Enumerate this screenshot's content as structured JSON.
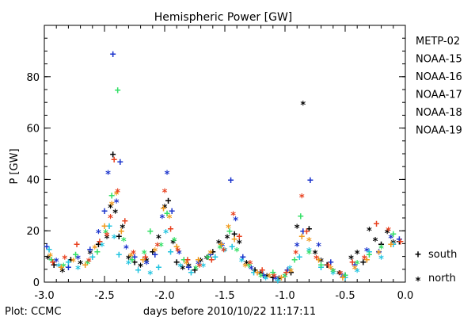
{
  "chart_data": {
    "type": "scatter",
    "title": "Hemispheric Power [GW]",
    "xlabel": "days before 2010/10/22 11:17:11",
    "ylabel": "P [GW]",
    "footer": "Plot: CCMC",
    "xlim": [
      -3.0,
      0.0
    ],
    "ylim": [
      0,
      100
    ],
    "x_ticks": [
      "-3.0",
      "-2.5",
      "-2.0",
      "-1.5",
      "-1.0",
      "-0.5",
      "0.0"
    ],
    "x_tick_values": [
      -3.0,
      -2.5,
      -2.0,
      -1.5,
      -1.0,
      -0.5,
      0.0
    ],
    "y_ticks": [
      "0",
      "20",
      "40",
      "60",
      "80"
    ],
    "y_tick_values": [
      0,
      20,
      40,
      60,
      80
    ],
    "hemisphere_legend": [
      {
        "symbol": "+",
        "label": "south"
      },
      {
        "symbol": "*",
        "label": "north"
      }
    ],
    "series": [
      {
        "name": "METP-02",
        "color": "#000000",
        "points": [
          [
            -2.97,
            10,
            "*"
          ],
          [
            -2.92,
            7,
            "+"
          ],
          [
            -2.85,
            5,
            "*"
          ],
          [
            -2.78,
            9,
            "+"
          ],
          [
            -2.7,
            8,
            "*"
          ],
          [
            -2.62,
            12,
            "*"
          ],
          [
            -2.55,
            15,
            "+"
          ],
          [
            -2.48,
            18,
            "*"
          ],
          [
            -2.45,
            30,
            "*"
          ],
          [
            -2.43,
            50,
            "+"
          ],
          [
            -2.41,
            28,
            "*"
          ],
          [
            -2.38,
            18,
            "+"
          ],
          [
            -2.35,
            22,
            "*"
          ],
          [
            -2.3,
            10,
            "*"
          ],
          [
            -2.25,
            8,
            "+"
          ],
          [
            -2.2,
            7,
            "*"
          ],
          [
            -2.15,
            9,
            "*"
          ],
          [
            -2.1,
            12,
            "+"
          ],
          [
            -2.05,
            18,
            "*"
          ],
          [
            -2.0,
            30,
            "*"
          ],
          [
            -1.97,
            32,
            "+"
          ],
          [
            -1.93,
            16,
            "*"
          ],
          [
            -1.9,
            8,
            "+"
          ],
          [
            -1.85,
            6,
            "*"
          ],
          [
            -1.8,
            7,
            "*"
          ],
          [
            -1.75,
            5,
            "+"
          ],
          [
            -1.7,
            9,
            "*"
          ],
          [
            -1.65,
            10,
            "*"
          ],
          [
            -1.6,
            12,
            "+"
          ],
          [
            -1.55,
            16,
            "*"
          ],
          [
            -1.48,
            18,
            "*"
          ],
          [
            -1.42,
            19,
            "+"
          ],
          [
            -1.38,
            16,
            "*"
          ],
          [
            -1.32,
            8,
            "*"
          ],
          [
            -1.25,
            5,
            "+"
          ],
          [
            -1.2,
            4,
            "*"
          ],
          [
            -1.15,
            3,
            "*"
          ],
          [
            -1.1,
            2,
            "+"
          ],
          [
            -1.05,
            2,
            "*"
          ],
          [
            -1.0,
            3,
            "*"
          ],
          [
            -0.95,
            4,
            "+"
          ],
          [
            -0.9,
            22,
            "*"
          ],
          [
            -0.85,
            70,
            "*"
          ],
          [
            -0.8,
            21,
            "+"
          ],
          [
            -0.75,
            12,
            "*"
          ],
          [
            -0.7,
            9,
            "*"
          ],
          [
            -0.65,
            7,
            "+"
          ],
          [
            -0.6,
            5,
            "*"
          ],
          [
            -0.55,
            4,
            "*"
          ],
          [
            -0.5,
            3,
            "+"
          ],
          [
            -0.45,
            10,
            "*"
          ],
          [
            -0.4,
            12,
            "*"
          ],
          [
            -0.35,
            8,
            "+"
          ],
          [
            -0.3,
            21,
            "*"
          ],
          [
            -0.25,
            17,
            "*"
          ],
          [
            -0.2,
            15,
            "+"
          ],
          [
            -0.15,
            20,
            "*"
          ],
          [
            -0.1,
            16,
            "*"
          ],
          [
            -0.05,
            16,
            "+"
          ]
        ]
      },
      {
        "name": "NOAA-15",
        "color": "#1a33cc",
        "points": [
          [
            -2.98,
            14,
            "+"
          ],
          [
            -2.9,
            9,
            "*"
          ],
          [
            -2.8,
            6,
            "+"
          ],
          [
            -2.72,
            10,
            "*"
          ],
          [
            -2.62,
            13,
            "+"
          ],
          [
            -2.55,
            20,
            "*"
          ],
          [
            -2.5,
            28,
            "+"
          ],
          [
            -2.47,
            43,
            "*"
          ],
          [
            -2.43,
            89,
            "+"
          ],
          [
            -2.4,
            32,
            "*"
          ],
          [
            -2.37,
            47,
            "+"
          ],
          [
            -2.32,
            14,
            "*"
          ],
          [
            -2.25,
            10,
            "+"
          ],
          [
            -2.15,
            8,
            "*"
          ],
          [
            -2.08,
            11,
            "+"
          ],
          [
            -2.02,
            26,
            "*"
          ],
          [
            -1.98,
            43,
            "*"
          ],
          [
            -1.94,
            28,
            "+"
          ],
          [
            -1.88,
            12,
            "*"
          ],
          [
            -1.8,
            6,
            "+"
          ],
          [
            -1.72,
            8,
            "*"
          ],
          [
            -1.62,
            11,
            "+"
          ],
          [
            -1.52,
            15,
            "*"
          ],
          [
            -1.45,
            40,
            "+"
          ],
          [
            -1.41,
            25,
            "*"
          ],
          [
            -1.35,
            10,
            "+"
          ],
          [
            -1.28,
            6,
            "*"
          ],
          [
            -1.18,
            3,
            "+"
          ],
          [
            -1.08,
            2,
            "*"
          ],
          [
            -0.98,
            5,
            "+"
          ],
          [
            -0.9,
            15,
            "*"
          ],
          [
            -0.85,
            20,
            "+"
          ],
          [
            -0.79,
            40,
            "+"
          ],
          [
            -0.72,
            15,
            "*"
          ],
          [
            -0.62,
            8,
            "+"
          ],
          [
            -0.52,
            3,
            "*"
          ],
          [
            -0.42,
            7,
            "+"
          ],
          [
            -0.32,
            13,
            "*"
          ],
          [
            -0.22,
            12,
            "+"
          ],
          [
            -0.12,
            18,
            "*"
          ],
          [
            -0.05,
            17,
            "+"
          ]
        ]
      },
      {
        "name": "NOAA-16",
        "color": "#22c4e0",
        "points": [
          [
            -2.96,
            13,
            "+"
          ],
          [
            -2.88,
            7,
            "*"
          ],
          [
            -2.8,
            8,
            "+"
          ],
          [
            -2.72,
            6,
            "*"
          ],
          [
            -2.6,
            10,
            "+"
          ],
          [
            -2.52,
            15,
            "*"
          ],
          [
            -2.46,
            22,
            "+"
          ],
          [
            -2.42,
            18,
            "*"
          ],
          [
            -2.38,
            11,
            "+"
          ],
          [
            -2.3,
            8,
            "*"
          ],
          [
            -2.22,
            5,
            "+"
          ],
          [
            -2.12,
            4,
            "*"
          ],
          [
            -2.05,
            6,
            "+"
          ],
          [
            -1.99,
            20,
            "*"
          ],
          [
            -1.95,
            12,
            "+"
          ],
          [
            -1.87,
            7,
            "*"
          ],
          [
            -1.78,
            4,
            "+"
          ],
          [
            -1.68,
            7,
            "*"
          ],
          [
            -1.58,
            10,
            "+"
          ],
          [
            -1.5,
            13,
            "*"
          ],
          [
            -1.44,
            14,
            "+"
          ],
          [
            -1.36,
            9,
            "*"
          ],
          [
            -1.26,
            4,
            "+"
          ],
          [
            -1.16,
            2,
            "*"
          ],
          [
            -1.06,
            1,
            "+"
          ],
          [
            -0.96,
            6,
            "*"
          ],
          [
            -0.88,
            10,
            "+"
          ],
          [
            -0.8,
            13,
            "*"
          ],
          [
            -0.7,
            6,
            "+"
          ],
          [
            -0.6,
            4,
            "*"
          ],
          [
            -0.5,
            2,
            "+"
          ],
          [
            -0.4,
            5,
            "*"
          ],
          [
            -0.3,
            12,
            "+"
          ],
          [
            -0.2,
            10,
            "*"
          ],
          [
            -0.1,
            15,
            "+"
          ]
        ]
      },
      {
        "name": "NOAA-17",
        "color": "#33e066",
        "points": [
          [
            -2.94,
            9,
            "+"
          ],
          [
            -2.84,
            7,
            "*"
          ],
          [
            -2.74,
            11,
            "+"
          ],
          [
            -2.64,
            8,
            "*"
          ],
          [
            -2.56,
            12,
            "+"
          ],
          [
            -2.49,
            20,
            "*"
          ],
          [
            -2.44,
            34,
            "+"
          ],
          [
            -2.39,
            75,
            "+"
          ],
          [
            -2.34,
            17,
            "*"
          ],
          [
            -2.27,
            9,
            "+"
          ],
          [
            -2.17,
            12,
            "*"
          ],
          [
            -2.12,
            20,
            "+"
          ],
          [
            -2.03,
            15,
            "*"
          ],
          [
            -1.98,
            27,
            "+"
          ],
          [
            -1.92,
            17,
            "*"
          ],
          [
            -1.84,
            9,
            "+"
          ],
          [
            -1.74,
            6,
            "*"
          ],
          [
            -1.64,
            10,
            "+"
          ],
          [
            -1.54,
            14,
            "*"
          ],
          [
            -1.46,
            20,
            "+"
          ],
          [
            -1.4,
            13,
            "*"
          ],
          [
            -1.3,
            7,
            "+"
          ],
          [
            -1.2,
            3,
            "*"
          ],
          [
            -1.1,
            4,
            "+"
          ],
          [
            -1.0,
            3,
            "*"
          ],
          [
            -0.92,
            9,
            "+"
          ],
          [
            -0.87,
            26,
            "+"
          ],
          [
            -0.8,
            12,
            "*"
          ],
          [
            -0.7,
            7,
            "+"
          ],
          [
            -0.6,
            5,
            "*"
          ],
          [
            -0.5,
            3,
            "+"
          ],
          [
            -0.4,
            8,
            "*"
          ],
          [
            -0.3,
            11,
            "+"
          ],
          [
            -0.2,
            14,
            "*"
          ],
          [
            -0.1,
            19,
            "+"
          ]
        ]
      },
      {
        "name": "NOAA-18",
        "color": "#f09a1e",
        "points": [
          [
            -2.95,
            11,
            "*"
          ],
          [
            -2.86,
            6,
            "+"
          ],
          [
            -2.76,
            9,
            "*"
          ],
          [
            -2.66,
            7,
            "+"
          ],
          [
            -2.58,
            14,
            "*"
          ],
          [
            -2.5,
            22,
            "+"
          ],
          [
            -2.44,
            31,
            "*"
          ],
          [
            -2.4,
            35,
            "*"
          ],
          [
            -2.36,
            20,
            "+"
          ],
          [
            -2.28,
            11,
            "*"
          ],
          [
            -2.18,
            9,
            "+"
          ],
          [
            -2.08,
            13,
            "*"
          ],
          [
            -2.01,
            29,
            "+"
          ],
          [
            -1.96,
            26,
            "*"
          ],
          [
            -1.9,
            14,
            "+"
          ],
          [
            -1.82,
            8,
            "*"
          ],
          [
            -1.72,
            9,
            "+"
          ],
          [
            -1.62,
            12,
            "*"
          ],
          [
            -1.53,
            15,
            "+"
          ],
          [
            -1.47,
            22,
            "*"
          ],
          [
            -1.42,
            17,
            "+"
          ],
          [
            -1.33,
            7,
            "*"
          ],
          [
            -1.23,
            4,
            "+"
          ],
          [
            -1.13,
            3,
            "*"
          ],
          [
            -1.03,
            2,
            "+"
          ],
          [
            -0.95,
            5,
            "*"
          ],
          [
            -0.86,
            18,
            "+"
          ],
          [
            -0.8,
            17,
            "*"
          ],
          [
            -0.72,
            9,
            "+"
          ],
          [
            -0.62,
            6,
            "*"
          ],
          [
            -0.52,
            2,
            "+"
          ],
          [
            -0.42,
            6,
            "*"
          ],
          [
            -0.32,
            9,
            "+"
          ],
          [
            -0.22,
            12,
            "*"
          ],
          [
            -0.12,
            15,
            "+"
          ]
        ]
      },
      {
        "name": "NOAA-19",
        "color": "#e8401e",
        "points": [
          [
            -2.93,
            8,
            "+"
          ],
          [
            -2.83,
            10,
            "*"
          ],
          [
            -2.73,
            15,
            "+"
          ],
          [
            -2.63,
            9,
            "*"
          ],
          [
            -2.54,
            16,
            "+"
          ],
          [
            -2.48,
            19,
            "*"
          ],
          [
            -2.45,
            26,
            "*"
          ],
          [
            -2.42,
            48,
            "+"
          ],
          [
            -2.39,
            36,
            "*"
          ],
          [
            -2.33,
            24,
            "+"
          ],
          [
            -2.26,
            12,
            "*"
          ],
          [
            -2.16,
            10,
            "+"
          ],
          [
            -2.06,
            15,
            "*"
          ],
          [
            -2.0,
            36,
            "*"
          ],
          [
            -1.95,
            21,
            "+"
          ],
          [
            -1.89,
            13,
            "*"
          ],
          [
            -1.81,
            9,
            "+"
          ],
          [
            -1.71,
            7,
            "*"
          ],
          [
            -1.61,
            9,
            "+"
          ],
          [
            -1.51,
            13,
            "*"
          ],
          [
            -1.43,
            27,
            "*"
          ],
          [
            -1.38,
            18,
            "+"
          ],
          [
            -1.29,
            8,
            "*"
          ],
          [
            -1.19,
            5,
            "+"
          ],
          [
            -1.09,
            3,
            "*"
          ],
          [
            -0.99,
            4,
            "+"
          ],
          [
            -0.91,
            12,
            "*"
          ],
          [
            -0.86,
            34,
            "*"
          ],
          [
            -0.82,
            20,
            "+"
          ],
          [
            -0.74,
            10,
            "*"
          ],
          [
            -0.64,
            7,
            "+"
          ],
          [
            -0.54,
            4,
            "*"
          ],
          [
            -0.44,
            8,
            "+"
          ],
          [
            -0.34,
            10,
            "*"
          ],
          [
            -0.24,
            23,
            "+"
          ],
          [
            -0.14,
            21,
            "*"
          ],
          [
            -0.04,
            16,
            "+"
          ]
        ]
      }
    ]
  }
}
